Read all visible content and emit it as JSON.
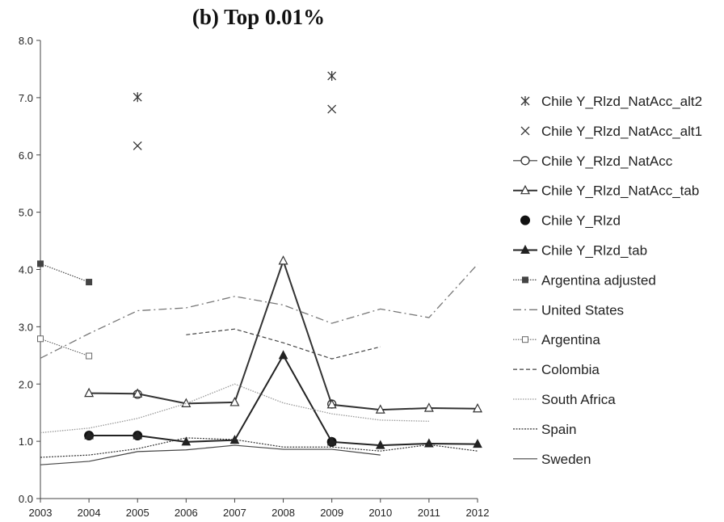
{
  "chart_data": {
    "type": "line",
    "title": "(b) Top 0.01%",
    "xlabel": "",
    "ylabel": "",
    "ylim": [
      0,
      8
    ],
    "x": [
      2003,
      2004,
      2005,
      2006,
      2007,
      2008,
      2009,
      2010,
      2011,
      2012
    ],
    "y_ticks": [
      "0.0",
      "1.0",
      "2.0",
      "3.0",
      "4.0",
      "5.0",
      "6.0",
      "7.0",
      "8.0"
    ],
    "x_ticks": [
      "2003",
      "2004",
      "2005",
      "2006",
      "2007",
      "2008",
      "2009",
      "2010",
      "2011",
      "2012"
    ],
    "grid": false,
    "legend_position": "right",
    "series": [
      {
        "name": "Chile Y_Rlzd_NatAcc_alt2",
        "style": "markers",
        "marker": "star",
        "color": "#333333",
        "dash": "none",
        "values": [
          null,
          null,
          7.01,
          null,
          null,
          null,
          7.38,
          null,
          null,
          null
        ]
      },
      {
        "name": "Chile Y_Rlzd_NatAcc_alt1",
        "style": "markers",
        "marker": "x",
        "color": "#333333",
        "dash": "none",
        "values": [
          null,
          null,
          6.16,
          null,
          null,
          null,
          6.8,
          null,
          null,
          null
        ]
      },
      {
        "name": "Chile Y_Rlzd_NatAcc",
        "style": "markers",
        "marker": "circle-open",
        "color": "#333333",
        "dash": "none",
        "values": [
          null,
          null,
          1.82,
          null,
          null,
          null,
          1.65,
          null,
          null,
          null
        ]
      },
      {
        "name": "Chile Y_Rlzd_NatAcc_tab",
        "style": "line",
        "marker": "triangle-open",
        "color": "#333333",
        "dash": "none",
        "width": 2,
        "values": [
          null,
          1.84,
          1.83,
          1.66,
          1.68,
          4.15,
          1.64,
          1.55,
          1.58,
          1.57
        ]
      },
      {
        "name": "Chile Y_Rlzd",
        "style": "markers",
        "marker": "circle-filled",
        "color": "#111111",
        "dash": "none",
        "values": [
          null,
          1.1,
          1.1,
          null,
          null,
          null,
          0.99,
          null,
          null,
          null
        ]
      },
      {
        "name": "Chile Y_Rlzd_tab",
        "style": "line",
        "marker": "triangle-filled",
        "color": "#222222",
        "dash": "none",
        "width": 2,
        "values": [
          null,
          1.1,
          1.1,
          0.99,
          1.02,
          2.5,
          0.99,
          0.93,
          0.96,
          0.95
        ]
      },
      {
        "name": "Argentina adjusted",
        "style": "line",
        "marker": "square-filled",
        "color": "#444444",
        "dash": "1.5,1.5",
        "width": 1.2,
        "values": [
          4.1,
          3.78,
          null,
          null,
          null,
          null,
          null,
          null,
          null,
          null
        ]
      },
      {
        "name": "United States",
        "style": "line",
        "marker": "none",
        "color": "#777777",
        "dash": "10,4,2,4",
        "width": 1.3,
        "values": [
          2.45,
          2.88,
          3.28,
          3.33,
          3.53,
          3.38,
          3.06,
          3.31,
          3.16,
          4.09
        ]
      },
      {
        "name": "Argentina",
        "style": "line",
        "marker": "square-open",
        "color": "#666666",
        "dash": "1.5,1.5",
        "width": 1.2,
        "values": [
          2.79,
          2.49,
          null,
          null,
          null,
          null,
          null,
          null,
          null,
          null
        ]
      },
      {
        "name": "Colombia",
        "style": "line",
        "marker": "none",
        "color": "#444444",
        "dash": "5,3",
        "width": 1.2,
        "values": [
          null,
          null,
          null,
          2.86,
          2.96,
          2.72,
          2.44,
          2.65,
          null,
          null
        ]
      },
      {
        "name": "South Africa",
        "style": "line",
        "marker": "none",
        "color": "#999999",
        "dash": "1.5,1.5",
        "width": 1.3,
        "values": [
          1.15,
          1.23,
          1.4,
          1.66,
          2.0,
          1.67,
          1.48,
          1.37,
          1.35,
          null
        ]
      },
      {
        "name": "Spain",
        "style": "line",
        "marker": "none",
        "color": "#333333",
        "dash": "2,1.5",
        "width": 1.2,
        "values": [
          0.72,
          0.76,
          0.87,
          1.06,
          1.03,
          0.9,
          0.9,
          0.83,
          0.94,
          0.83
        ]
      },
      {
        "name": "Sweden",
        "style": "line",
        "marker": "none",
        "color": "#444444",
        "dash": "none",
        "width": 1.2,
        "values": [
          0.59,
          0.65,
          0.82,
          0.85,
          0.93,
          0.86,
          0.86,
          0.76,
          null,
          null
        ]
      }
    ]
  }
}
